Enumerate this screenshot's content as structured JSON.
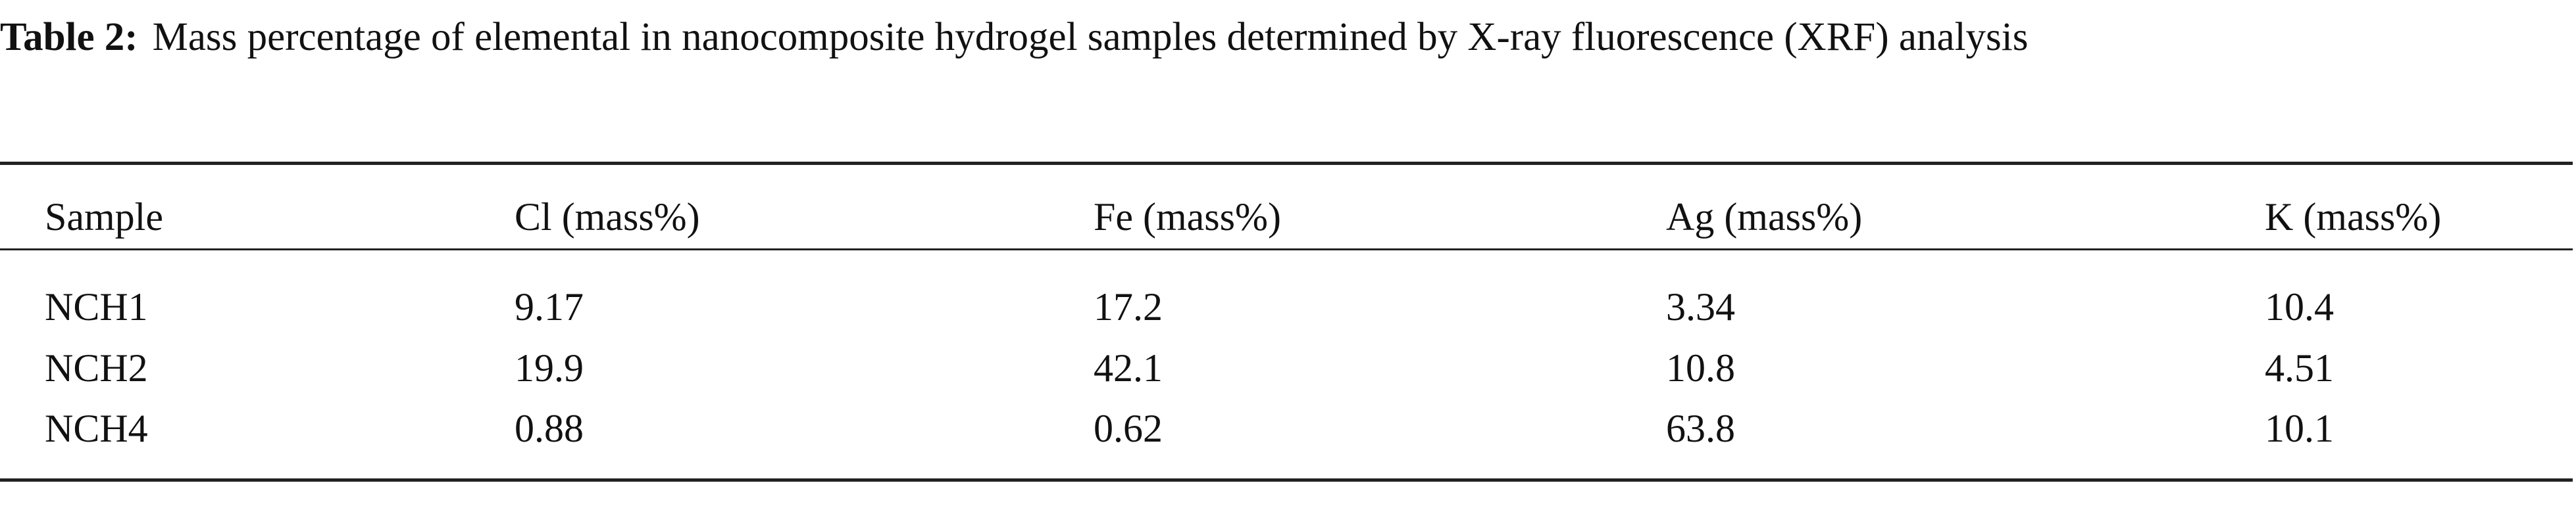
{
  "caption": {
    "label": "Table 2:",
    "text": "Mass percentage of elemental in nanocomposite hydrogel samples determined by X-ray fluorescence (XRF) analysis"
  },
  "table": {
    "header": [
      "Sample",
      "Cl (mass%)",
      "Fe (mass%)",
      "Ag (mass%)",
      "K (mass%)"
    ],
    "rows": [
      [
        "NCH1",
        "9.17",
        "17.2",
        "3.34",
        "10.4"
      ],
      [
        "NCH2",
        "19.9",
        "42.1",
        "10.8",
        "4.51"
      ],
      [
        "NCH4",
        "0.88",
        "0.62",
        "63.8",
        "10.1"
      ]
    ]
  }
}
